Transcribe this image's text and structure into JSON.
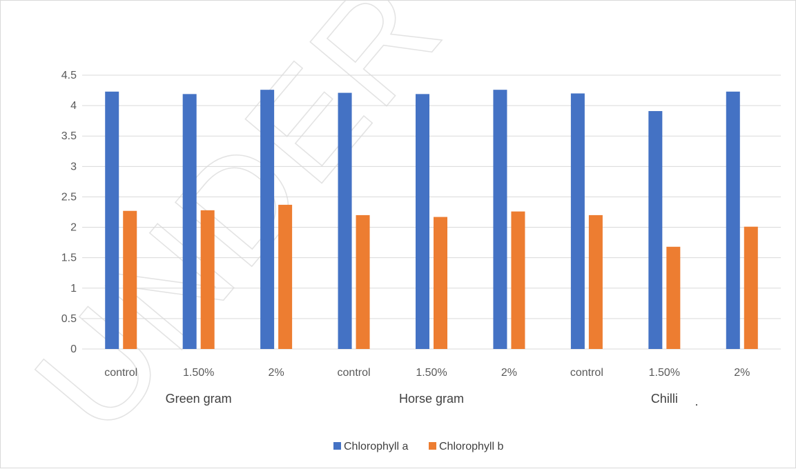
{
  "watermark": {
    "text": "UNDER PEER"
  },
  "chart_data": {
    "type": "bar",
    "title": "",
    "xlabel": "",
    "ylabel": "",
    "ylim": [
      0,
      4.5
    ],
    "yticks": [
      "0",
      "0.5",
      "1",
      "1.5",
      "2",
      "2.5",
      "3",
      "3.5",
      "4",
      "4.5"
    ],
    "grid": true,
    "legend_position": "bottom",
    "categories": [
      "control",
      "1.50%",
      "2%",
      "control",
      "1.50%",
      "2%",
      "control",
      "1.50%",
      "2%"
    ],
    "groups": [
      {
        "label": "Green gram",
        "span": [
          0,
          2
        ]
      },
      {
        "label": "Horse gram",
        "span": [
          3,
          5
        ]
      },
      {
        "label": "Chilli",
        "span": [
          6,
          8
        ]
      }
    ],
    "stray_mark": ".",
    "series": [
      {
        "name": "Chlorophyll a",
        "color": "#4472C4",
        "values": [
          4.23,
          4.19,
          4.26,
          4.21,
          4.19,
          4.26,
          4.2,
          3.91,
          4.23
        ]
      },
      {
        "name": "Chlorophyll b",
        "color": "#ED7D31",
        "values": [
          2.27,
          2.28,
          2.37,
          2.2,
          2.17,
          2.26,
          2.2,
          1.68,
          2.01
        ]
      }
    ]
  }
}
